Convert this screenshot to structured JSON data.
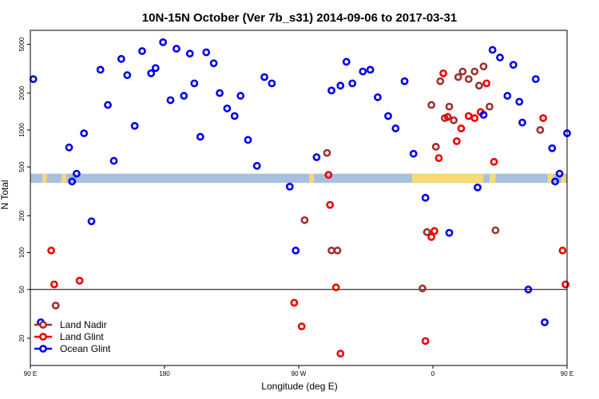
{
  "chart_data": {
    "type": "scatter",
    "title": "10N-15N October (Ver 7b_s31)   2014-09-06 to 2017-03-31",
    "xlabel": "Longitude (deg E)",
    "ylabel": "N Total",
    "x_scale": "linear",
    "y_scale": "log",
    "xlim": [
      90,
      450
    ],
    "ylim": [
      12,
      6500
    ],
    "x_ticks": [
      {
        "value": 90,
        "label": "90 E"
      },
      {
        "value": 180,
        "label": "180"
      },
      {
        "value": 270,
        "label": "90 W"
      },
      {
        "value": 360,
        "label": "0"
      },
      {
        "value": 450,
        "label": "90 E"
      },
      {
        "value": 540,
        "label": "180"
      }
    ],
    "y_ticks": [
      {
        "value": 20,
        "label": "20"
      },
      {
        "value": 50,
        "label": "50"
      },
      {
        "value": 100,
        "label": "100"
      },
      {
        "value": 200,
        "label": "200"
      },
      {
        "value": 500,
        "label": "500"
      },
      {
        "value": 1000,
        "label": "1000"
      },
      {
        "value": 2000,
        "label": "2000"
      },
      {
        "value": 5000,
        "label": "5000"
      }
    ],
    "reference_line": 50,
    "legend_position": "bottom-left",
    "land_mask_band": {
      "y_range": [
        370,
        440
      ],
      "ocean_color": "#a8c0e0",
      "land_color": "#f8d878",
      "land_segments": [
        [
          98,
          101
        ],
        [
          111,
          114
        ],
        [
          277,
          280
        ],
        [
          346,
          394
        ],
        [
          398,
          402
        ],
        [
          437,
          441
        ],
        [
          446,
          449
        ]
      ]
    },
    "series": [
      {
        "name": "Land Nadir",
        "color": "#a03030",
        "points": [
          [
            107,
            37
          ],
          [
            289,
            650
          ],
          [
            292,
            104
          ],
          [
            296,
            104
          ],
          [
            274,
            184
          ],
          [
            353,
            51
          ],
          [
            356,
            147
          ],
          [
            359,
            1600
          ],
          [
            362,
            730
          ],
          [
            365,
            2500
          ],
          [
            368,
            1250
          ],
          [
            371,
            1550
          ],
          [
            374,
            1200
          ],
          [
            377,
            2700
          ],
          [
            380,
            3000
          ],
          [
            384,
            2600
          ],
          [
            388,
            3000
          ],
          [
            391,
            2300
          ],
          [
            394,
            3300
          ],
          [
            398,
            1550
          ],
          [
            432,
            1000
          ],
          [
            402,
            152
          ]
        ]
      },
      {
        "name": "Land Glint",
        "color": "#ee0000",
        "points": [
          [
            104,
            104
          ],
          [
            106,
            55
          ],
          [
            123,
            59
          ],
          [
            267,
            39
          ],
          [
            272,
            25
          ],
          [
            290,
            430
          ],
          [
            291,
            245
          ],
          [
            295,
            52
          ],
          [
            298,
            15
          ],
          [
            355,
            19
          ],
          [
            359,
            134
          ],
          [
            361,
            150
          ],
          [
            364,
            590
          ],
          [
            367,
            2900
          ],
          [
            370,
            1280
          ],
          [
            376,
            810
          ],
          [
            379,
            1030
          ],
          [
            384,
            1300
          ],
          [
            388,
            1250
          ],
          [
            392,
            1400
          ],
          [
            396,
            2400
          ],
          [
            401,
            550
          ],
          [
            434,
            1250
          ],
          [
            447,
            104
          ],
          [
            449,
            55
          ]
        ]
      },
      {
        "name": "Ocean Glint",
        "color": "#0000ee",
        "points": [
          [
            92,
            2600
          ],
          [
            97,
            27
          ],
          [
            116,
            720
          ],
          [
            118,
            380
          ],
          [
            121,
            440
          ],
          [
            126,
            940
          ],
          [
            131,
            180
          ],
          [
            137,
            3100
          ],
          [
            142,
            1600
          ],
          [
            146,
            560
          ],
          [
            151,
            3800
          ],
          [
            155,
            2800
          ],
          [
            160,
            1080
          ],
          [
            165,
            4400
          ],
          [
            171,
            2900
          ],
          [
            174,
            3200
          ],
          [
            179,
            5200
          ],
          [
            184,
            1750
          ],
          [
            188,
            4600
          ],
          [
            193,
            1900
          ],
          [
            197,
            4200
          ],
          [
            200,
            2400
          ],
          [
            204,
            880
          ],
          [
            208,
            4300
          ],
          [
            213,
            3500
          ],
          [
            217,
            2000
          ],
          [
            222,
            1500
          ],
          [
            227,
            1300
          ],
          [
            231,
            1900
          ],
          [
            236,
            830
          ],
          [
            242,
            510
          ],
          [
            247,
            2700
          ],
          [
            252,
            2400
          ],
          [
            264,
            345
          ],
          [
            268,
            104
          ],
          [
            282,
            600
          ],
          [
            292,
            2100
          ],
          [
            298,
            2300
          ],
          [
            302,
            3600
          ],
          [
            306,
            2400
          ],
          [
            313,
            3000
          ],
          [
            318,
            3100
          ],
          [
            323,
            1850
          ],
          [
            330,
            1300
          ],
          [
            335,
            1030
          ],
          [
            341,
            2500
          ],
          [
            347,
            640
          ],
          [
            355,
            280
          ],
          [
            371,
            145
          ],
          [
            390,
            340
          ],
          [
            394,
            1330
          ],
          [
            400,
            4500
          ],
          [
            405,
            3900
          ],
          [
            410,
            1900
          ],
          [
            414,
            3400
          ],
          [
            418,
            1700
          ],
          [
            420,
            1150
          ],
          [
            424,
            50
          ],
          [
            429,
            2600
          ],
          [
            435,
            27
          ],
          [
            440,
            710
          ],
          [
            442,
            380
          ],
          [
            445,
            440
          ],
          [
            450,
            940
          ]
        ]
      }
    ]
  }
}
